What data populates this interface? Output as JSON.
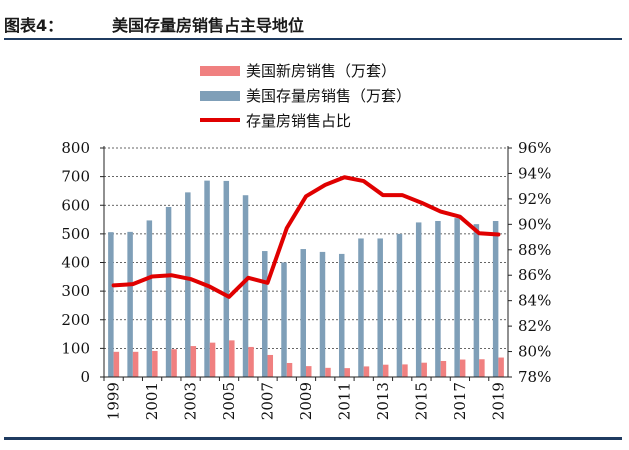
{
  "header": {
    "figure_label": "图表4：",
    "title": "美国存量房销售占主导地位"
  },
  "chart_data": {
    "type": "bar",
    "categories": [
      "1999",
      "2000",
      "2001",
      "2002",
      "2003",
      "2004",
      "2005",
      "2006",
      "2007",
      "2008",
      "2009",
      "2010",
      "2011",
      "2012",
      "2013",
      "2014",
      "2015",
      "2016",
      "2017",
      "2018",
      "2019"
    ],
    "x_tick_labels": [
      "1999",
      "2001",
      "2003",
      "2005",
      "2007",
      "2009",
      "2011",
      "2013",
      "2015",
      "2017",
      "2019"
    ],
    "series": [
      {
        "name": "美国新房销售（万套）",
        "kind": "bar",
        "axis": "left",
        "color": "#f08080",
        "values": [
          88,
          88,
          91,
          97,
          108,
          120,
          128,
          105,
          77,
          49,
          38,
          32,
          31,
          37,
          43,
          44,
          50,
          56,
          61,
          62,
          68
        ]
      },
      {
        "name": "美国存量房销售（万套）",
        "kind": "bar",
        "axis": "left",
        "color": "#7f9fb8",
        "values": [
          506,
          507,
          547,
          594,
          645,
          686,
          685,
          635,
          440,
          400,
          447,
          437,
          430,
          484,
          484,
          500,
          540,
          545,
          555,
          534,
          545
        ]
      },
      {
        "name": "存量房销售占比",
        "kind": "line",
        "axis": "right",
        "color": "#e00000",
        "values": [
          85.2,
          85.3,
          85.9,
          86.0,
          85.7,
          85.1,
          84.3,
          85.8,
          85.4,
          89.7,
          92.2,
          93.1,
          93.7,
          93.4,
          92.3,
          92.3,
          91.7,
          91.0,
          90.6,
          89.3,
          89.2
        ]
      }
    ],
    "y_left": {
      "min": 0,
      "max": 800,
      "step": 100,
      "ticks": [
        "0",
        "100",
        "200",
        "300",
        "400",
        "500",
        "600",
        "700",
        "800"
      ]
    },
    "y_right": {
      "min": 78,
      "max": 96,
      "step": 2,
      "ticks": [
        "78%",
        "80%",
        "82%",
        "84%",
        "86%",
        "88%",
        "90%",
        "92%",
        "94%",
        "96%"
      ]
    },
    "grid": "horizontal-dashed",
    "legend_position": "top-center"
  }
}
